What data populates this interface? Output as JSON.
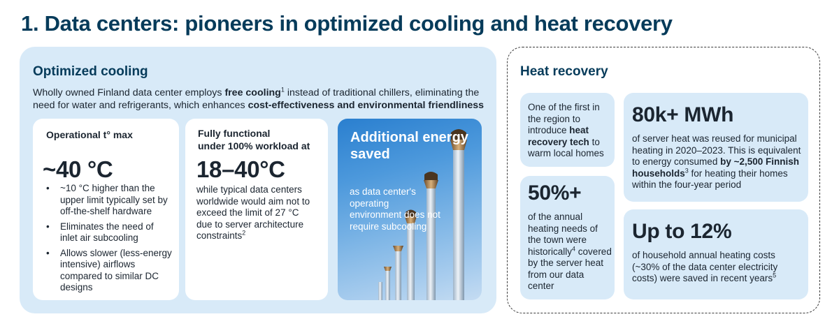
{
  "title": "1. Data centers: pioneers in optimized cooling and heat recovery",
  "optimized": {
    "heading": "Optimized cooling",
    "intro": {
      "p1": "Wholly owned Finland data center employs ",
      "b1": "free cooling",
      "s1": "1",
      "p2": " instead of traditional chillers, eliminating the need for water and refrigerants, which enhances ",
      "b2": "cost-effectiveness and environmental friendliness"
    },
    "card1": {
      "label": "Operational t° max",
      "value": "~40 °C",
      "bullets": [
        "~10 °C higher than the upper limit typically set by off-the-shelf hardware",
        "Eliminates the need of inlet air subcooling",
        "Allows slower (less-energy intensive) airflows compared to similar DC designs"
      ]
    },
    "card2": {
      "label_line1": "Fully functional",
      "label_line2": "under 100% workload at",
      "value": "18–40°C",
      "text": "while typical data centers worldwide would aim not to exceed the limit of 27 °C due to server architecture constraints",
      "sup": "2"
    },
    "card3": {
      "title": "Additional energy saved",
      "text": "as data center's operating environment does not require subcooling"
    }
  },
  "heat": {
    "heading": "Heat recovery",
    "first": {
      "p1": "One of the first in the region to introduce ",
      "b1": "heat recovery tech",
      "p2": " to warm local homes"
    },
    "mwh": {
      "value": "80k+ MWh",
      "p1": "of server heat was reused for municipal heating in 2020–2023. This is equivalent to energy consumed ",
      "b1": "by ~2,500 Finnish households",
      "s1": "3",
      "p2": " for heating their homes within the four-year period"
    },
    "pct": {
      "value": "50%+",
      "p1": "of the annual heating needs of the town were historically",
      "s1": "4",
      "p2": " covered by the server heat from our data center"
    },
    "upto": {
      "value": "Up to 12%",
      "p1": "of household annual heating costs (~30% of the data center electricity costs) were saved in recent years",
      "s1": "5"
    }
  }
}
